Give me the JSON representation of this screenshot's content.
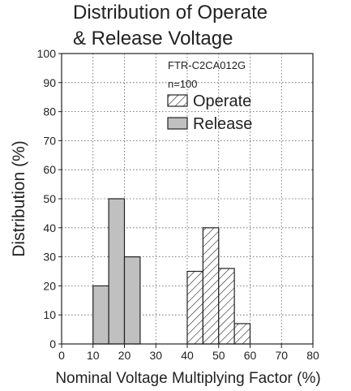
{
  "chart_data": {
    "type": "bar",
    "title": [
      "Distribution of Operate",
      "& Release Voltage"
    ],
    "xlabel": "Nominal Voltage Multiplying Factor (%)",
    "ylabel": "Distribution (%)",
    "xlim": [
      0,
      80
    ],
    "ylim": [
      0,
      100
    ],
    "xticks": [
      0,
      10,
      20,
      30,
      40,
      50,
      60,
      70,
      80
    ],
    "yticks": [
      0,
      10,
      20,
      30,
      40,
      50,
      60,
      70,
      80,
      90,
      100
    ],
    "grid": true,
    "bin_width": 5,
    "annotations": [
      "FTR-C2CA012G",
      "n=100"
    ],
    "legend_position": "upper-right",
    "series": [
      {
        "name": "Operate",
        "style": "hatched",
        "fill": "#ffffff",
        "bins": [
          {
            "x_start": 40,
            "x_end": 45,
            "value": 25
          },
          {
            "x_start": 45,
            "x_end": 50,
            "value": 40
          },
          {
            "x_start": 50,
            "x_end": 55,
            "value": 26
          },
          {
            "x_start": 55,
            "x_end": 60,
            "value": 7
          }
        ]
      },
      {
        "name": "Release",
        "style": "solid",
        "fill": "#c0c0c0",
        "bins": [
          {
            "x_start": 10,
            "x_end": 15,
            "value": 20
          },
          {
            "x_start": 15,
            "x_end": 20,
            "value": 50
          },
          {
            "x_start": 20,
            "x_end": 25,
            "value": 30
          }
        ]
      }
    ]
  }
}
